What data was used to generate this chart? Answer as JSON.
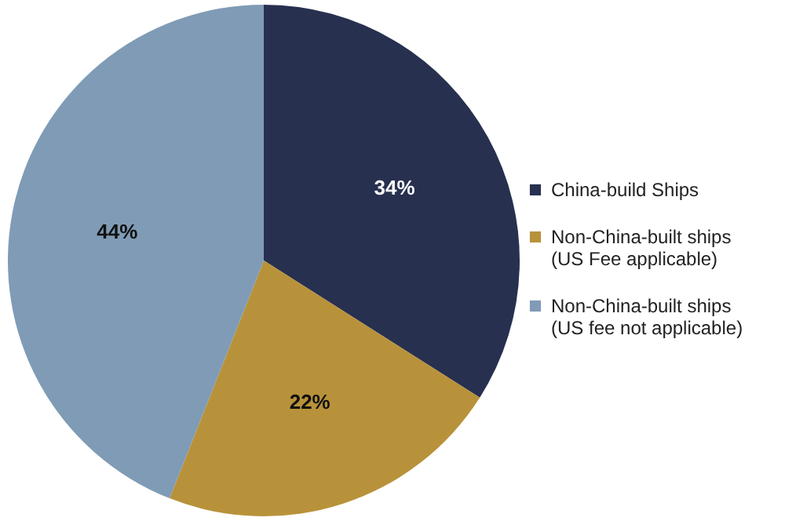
{
  "chart_data": {
    "type": "pie",
    "categories": [
      "China-build Ships",
      "Non-China-built ships (US Fee applicable)",
      "Non-China-built ships (US fee not applicable)"
    ],
    "values": [
      34,
      22,
      44
    ],
    "colors": [
      "#27304f",
      "#b8923a",
      "#7f9bb6"
    ],
    "value_labels": [
      "34%",
      "22%",
      "44%"
    ],
    "legend": "right"
  }
}
